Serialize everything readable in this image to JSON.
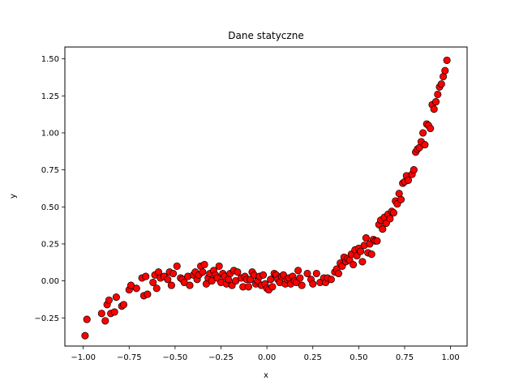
{
  "chart_data": {
    "type": "scatter",
    "title": "Dane statyczne",
    "xlabel": "x",
    "ylabel": "y",
    "xlim": [
      -1.1,
      1.09
    ],
    "ylim": [
      -0.44,
      1.58
    ],
    "xticks": [
      -1.0,
      -0.75,
      -0.5,
      -0.25,
      0.0,
      0.25,
      0.5,
      0.75,
      1.0
    ],
    "xtick_labels": [
      "−1.00",
      "−0.75",
      "−0.50",
      "−0.25",
      "0.00",
      "0.25",
      "0.50",
      "0.75",
      "1.00"
    ],
    "yticks": [
      -0.25,
      0.0,
      0.25,
      0.5,
      0.75,
      1.0,
      1.25,
      1.5
    ],
    "ytick_labels": [
      "−0.25",
      "0.00",
      "0.25",
      "0.50",
      "0.75",
      "1.00",
      "1.25",
      "1.50"
    ],
    "grid": false,
    "marker_color": "#ff0000",
    "marker_edge_color": "#000000",
    "points": [
      [
        -0.99,
        -0.37
      ],
      [
        -0.98,
        -0.26
      ],
      [
        -0.9,
        -0.22
      ],
      [
        -0.88,
        -0.27
      ],
      [
        -0.87,
        -0.16
      ],
      [
        -0.86,
        -0.13
      ],
      [
        -0.85,
        -0.22
      ],
      [
        -0.83,
        -0.21
      ],
      [
        -0.82,
        -0.11
      ],
      [
        -0.79,
        -0.17
      ],
      [
        -0.78,
        -0.16
      ],
      [
        -0.75,
        -0.06
      ],
      [
        -0.74,
        -0.03
      ],
      [
        -0.71,
        -0.05
      ],
      [
        -0.68,
        0.02
      ],
      [
        -0.67,
        -0.1
      ],
      [
        -0.66,
        0.03
      ],
      [
        -0.65,
        -0.09
      ],
      [
        -0.62,
        -0.01
      ],
      [
        -0.61,
        0.04
      ],
      [
        -0.6,
        -0.05
      ],
      [
        -0.59,
        0.06
      ],
      [
        -0.58,
        0.02
      ],
      [
        -0.56,
        0.03
      ],
      [
        -0.54,
        0.01
      ],
      [
        -0.53,
        0.06
      ],
      [
        -0.52,
        -0.03
      ],
      [
        -0.51,
        0.05
      ],
      [
        -0.49,
        0.1
      ],
      [
        -0.47,
        0.02
      ],
      [
        -0.46,
        0.01
      ],
      [
        -0.45,
        -0.01
      ],
      [
        -0.43,
        0.03
      ],
      [
        -0.42,
        -0.03
      ],
      [
        -0.4,
        0.04
      ],
      [
        -0.39,
        0.06
      ],
      [
        -0.38,
        0.01
      ],
      [
        -0.37,
        0.04
      ],
      [
        -0.36,
        0.1
      ],
      [
        -0.35,
        0.06
      ],
      [
        -0.34,
        0.11
      ],
      [
        -0.33,
        -0.02
      ],
      [
        -0.32,
        0.02
      ],
      [
        -0.31,
        0.05
      ],
      [
        -0.3,
        0.0
      ],
      [
        -0.29,
        0.07
      ],
      [
        -0.28,
        0.04
      ],
      [
        -0.27,
        0.02
      ],
      [
        -0.26,
        0.1
      ],
      [
        -0.25,
        -0.01
      ],
      [
        -0.24,
        0.05
      ],
      [
        -0.23,
        0.03
      ],
      [
        -0.22,
        -0.02
      ],
      [
        -0.21,
        0.01
      ],
      [
        -0.2,
        0.05
      ],
      [
        -0.19,
        -0.03
      ],
      [
        -0.18,
        0.07
      ],
      [
        -0.17,
        0.0
      ],
      [
        -0.16,
        0.06
      ],
      [
        -0.14,
        0.02
      ],
      [
        -0.13,
        -0.04
      ],
      [
        -0.12,
        0.03
      ],
      [
        -0.11,
        0.01
      ],
      [
        -0.1,
        -0.04
      ],
      [
        -0.09,
        0.01
      ],
      [
        -0.08,
        0.06
      ],
      [
        -0.07,
        0.04
      ],
      [
        -0.06,
        -0.02
      ],
      [
        -0.05,
        0.0
      ],
      [
        -0.04,
        0.03
      ],
      [
        -0.03,
        -0.03
      ],
      [
        -0.02,
        0.04
      ],
      [
        -0.01,
        -0.02
      ],
      [
        0.0,
        -0.05
      ],
      [
        0.01,
        -0.06
      ],
      [
        0.02,
        0.01
      ],
      [
        0.03,
        -0.04
      ],
      [
        0.04,
        0.05
      ],
      [
        0.05,
        0.04
      ],
      [
        0.06,
        0.01
      ],
      [
        0.07,
        -0.01
      ],
      [
        0.08,
        0.03
      ],
      [
        0.09,
        0.04
      ],
      [
        0.1,
        -0.02
      ],
      [
        0.11,
        0.01
      ],
      [
        0.12,
        0.02
      ],
      [
        0.13,
        -0.02
      ],
      [
        0.14,
        0.03
      ],
      [
        0.15,
        0.0
      ],
      [
        0.16,
        -0.01
      ],
      [
        0.17,
        0.07
      ],
      [
        0.18,
        0.02
      ],
      [
        0.19,
        -0.03
      ],
      [
        0.22,
        0.05
      ],
      [
        0.24,
        0.01
      ],
      [
        0.25,
        -0.02
      ],
      [
        0.27,
        0.05
      ],
      [
        0.29,
        -0.01
      ],
      [
        0.31,
        0.02
      ],
      [
        0.32,
        -0.01
      ],
      [
        0.33,
        0.02
      ],
      [
        0.35,
        0.01
      ],
      [
        0.37,
        0.06
      ],
      [
        0.38,
        0.08
      ],
      [
        0.39,
        0.05
      ],
      [
        0.4,
        0.12
      ],
      [
        0.41,
        0.1
      ],
      [
        0.42,
        0.16
      ],
      [
        0.43,
        0.13
      ],
      [
        0.44,
        0.15
      ],
      [
        0.45,
        0.14
      ],
      [
        0.46,
        0.18
      ],
      [
        0.47,
        0.11
      ],
      [
        0.48,
        0.21
      ],
      [
        0.49,
        0.17
      ],
      [
        0.5,
        0.22
      ],
      [
        0.51,
        0.2
      ],
      [
        0.52,
        0.13
      ],
      [
        0.53,
        0.24
      ],
      [
        0.54,
        0.29
      ],
      [
        0.55,
        0.19
      ],
      [
        0.56,
        0.25
      ],
      [
        0.57,
        0.18
      ],
      [
        0.58,
        0.28
      ],
      [
        0.59,
        0.27
      ],
      [
        0.6,
        0.27
      ],
      [
        0.61,
        0.38
      ],
      [
        0.62,
        0.41
      ],
      [
        0.63,
        0.35
      ],
      [
        0.64,
        0.43
      ],
      [
        0.65,
        0.39
      ],
      [
        0.66,
        0.45
      ],
      [
        0.67,
        0.42
      ],
      [
        0.68,
        0.47
      ],
      [
        0.69,
        0.46
      ],
      [
        0.7,
        0.54
      ],
      [
        0.71,
        0.52
      ],
      [
        0.72,
        0.59
      ],
      [
        0.73,
        0.55
      ],
      [
        0.74,
        0.66
      ],
      [
        0.75,
        0.67
      ],
      [
        0.76,
        0.71
      ],
      [
        0.77,
        0.68
      ],
      [
        0.79,
        0.72
      ],
      [
        0.8,
        0.75
      ],
      [
        0.81,
        0.87
      ],
      [
        0.82,
        0.89
      ],
      [
        0.83,
        0.9
      ],
      [
        0.84,
        0.94
      ],
      [
        0.85,
        1.0
      ],
      [
        0.86,
        0.92
      ],
      [
        0.87,
        1.06
      ],
      [
        0.88,
        1.05
      ],
      [
        0.89,
        1.03
      ],
      [
        0.9,
        1.19
      ],
      [
        0.91,
        1.16
      ],
      [
        0.92,
        1.21
      ],
      [
        0.93,
        1.26
      ],
      [
        0.94,
        1.31
      ],
      [
        0.95,
        1.33
      ],
      [
        0.96,
        1.38
      ],
      [
        0.97,
        1.42
      ],
      [
        0.98,
        1.49
      ]
    ]
  }
}
